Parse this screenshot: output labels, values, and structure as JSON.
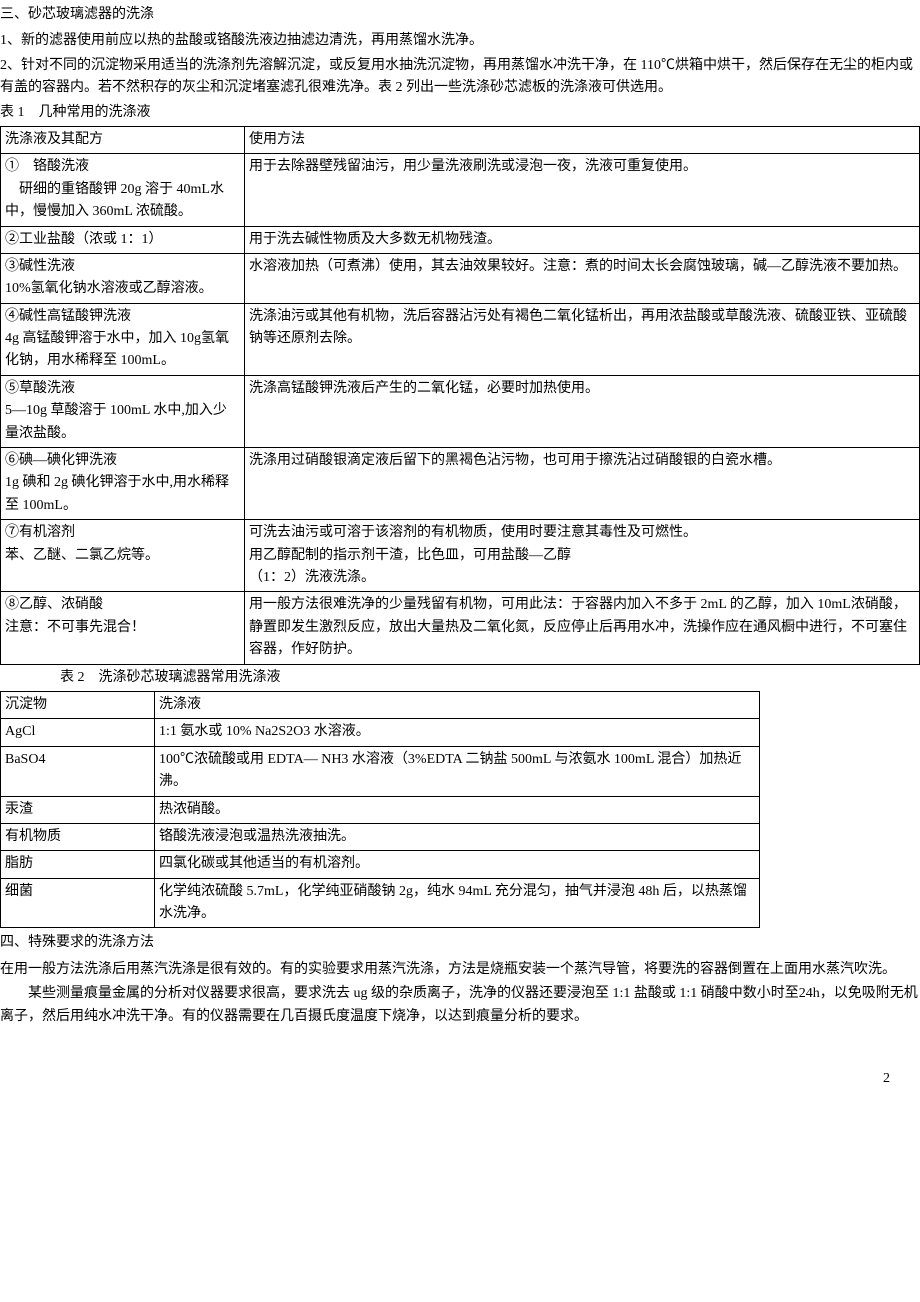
{
  "section3": {
    "title": "三、砂芯玻璃滤器的洗涤",
    "item1": "1、新的滤器使用前应以热的盐酸或铬酸洗液边抽滤边清洗，再用蒸馏水洗净。",
    "item2": "2、针对不同的沉淀物采用适当的洗涤剂先溶解沉淀，或反复用水抽洗沉淀物，再用蒸馏水冲洗干净，在 110℃烘箱中烘干，然后保存在无尘的柜内或有盖的容器内。若不然积存的灰尘和沉淀堵塞滤孔很难洗净。表 2 列出一些洗涤砂芯滤板的洗涤液可供选用。"
  },
  "table1": {
    "caption": "表 1　几种常用的洗涤液",
    "header": {
      "col1": "洗涤液及其配方",
      "col2": "使用方法"
    },
    "rows": [
      {
        "c1": "①　铬酸洗液\n　研细的重铬酸钾 20g 溶于 40mL水中，慢慢加入 360mL 浓硫酸。",
        "c2": "用于去除器壁残留油污，用少量洗液刷洗或浸泡一夜，洗液可重复使用。"
      },
      {
        "c1": "②工业盐酸（浓或 1：1）",
        "c2": "用于洗去碱性物质及大多数无机物残渣。"
      },
      {
        "c1": "③碱性洗液\n10%氢氧化钠水溶液或乙醇溶液。",
        "c2": "水溶液加热（可煮沸）使用，其去油效果较好。注意：煮的时间太长会腐蚀玻璃，碱—乙醇洗液不要加热。"
      },
      {
        "c1": "④碱性高锰酸钾洗液\n4g 高锰酸钾溶于水中，加入 10g氢氧化钠，用水稀释至 100mL。",
        "c2": "洗涤油污或其他有机物，洗后容器沾污处有褐色二氧化锰析出，再用浓盐酸或草酸洗液、硫酸亚铁、亚硫酸钠等还原剂去除。"
      },
      {
        "c1": "⑤草酸洗液\n5—10g 草酸溶于 100mL 水中,加入少量浓盐酸。",
        "c2": "洗涤高锰酸钾洗液后产生的二氧化锰，必要时加热使用。"
      },
      {
        "c1": "⑥碘—碘化钾洗液\n1g 碘和 2g 碘化钾溶于水中,用水稀释至 100mL。",
        "c2": "洗涤用过硝酸银滴定液后留下的黑褐色沾污物，也可用于擦洗沾过硝酸银的白瓷水槽。"
      },
      {
        "c1": "⑦有机溶剂\n苯、乙醚、二氯乙烷等。",
        "c2": "可洗去油污或可溶于该溶剂的有机物质，使用时要注意其毒性及可燃性。\n用乙醇配制的指示剂干渣，比色皿，可用盐酸—乙醇\n（1：2）洗液洗涤。"
      },
      {
        "c1": "⑧乙醇、浓硝酸\n注意：不可事先混合！",
        "c2": "用一般方法很难洗净的少量残留有机物，可用此法：于容器内加入不多于 2mL 的乙醇，加入 10mL浓硝酸，静置即发生激烈反应，放出大量热及二氧化氮，反应停止后再用水冲，洗操作应在通风橱中进行，不可塞住容器，作好防护。"
      }
    ]
  },
  "table2": {
    "caption": "表 2　洗涤砂芯玻璃滤器常用洗涤液",
    "header": {
      "col1": "沉淀物",
      "col2": "洗涤液"
    },
    "rows": [
      {
        "c1": "AgCl",
        "c2": "1:1 氨水或 10% Na2S2O3 水溶液。"
      },
      {
        "c1": "BaSO4",
        "c2": "100℃浓硫酸或用 EDTA— NH3 水溶液（3%EDTA 二钠盐 500mL 与浓氨水 100mL 混合）加热近沸。"
      },
      {
        "c1": "汞渣",
        "c2": "热浓硝酸。"
      },
      {
        "c1": "有机物质",
        "c2": "铬酸洗液浸泡或温热洗液抽洗。"
      },
      {
        "c1": "脂肪",
        "c2": "四氯化碳或其他适当的有机溶剂。"
      },
      {
        "c1": "细菌",
        "c2": "化学纯浓硫酸 5.7mL，化学纯亚硝酸钠 2g，纯水 94mL 充分混匀，抽气并浸泡 48h 后，以热蒸馏水洗净。"
      }
    ]
  },
  "section4": {
    "title": "四、特殊要求的洗涤方法",
    "p1": "在用一般方法洗涤后用蒸汽洗涤是很有效的。有的实验要求用蒸汽洗涤，方法是烧瓶安装一个蒸汽导管，将要洗的容器倒置在上面用水蒸汽吹洗。",
    "p2": "某些测量痕量金属的分析对仪器要求很高，要求洗去 ug 级的杂质离子，洗净的仪器还要浸泡至 1:1 盐酸或 1:1 硝酸中数小时至24h，以免吸附无机离子，然后用纯水冲洗干净。有的仪器需要在几百摄氏度温度下烧净，以达到痕量分析的要求。"
  },
  "pageNumber": "2"
}
